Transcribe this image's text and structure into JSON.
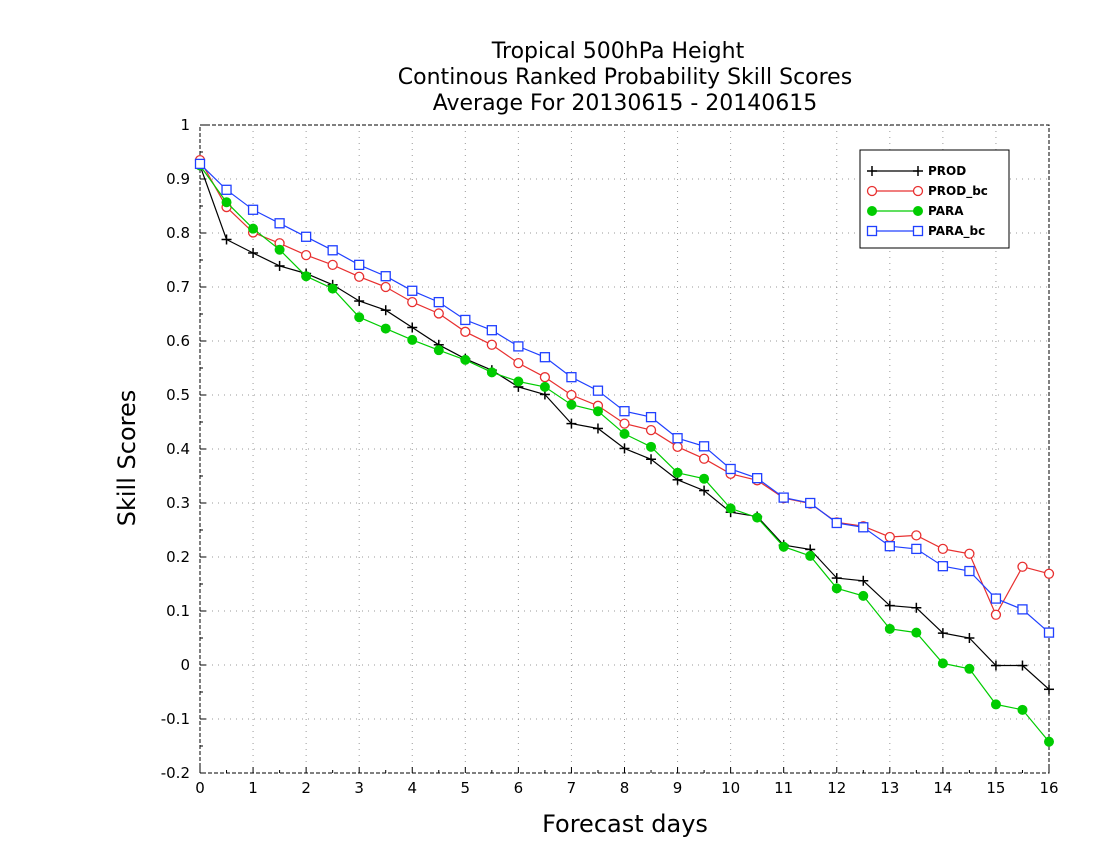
{
  "chart_data": {
    "type": "line",
    "title": [
      "Tropical 500hPa Height",
      "Continous Ranked Probability Skill Scores",
      "Average For 20130615 - 20140615"
    ],
    "xlabel": "Forecast days",
    "ylabel": "Skill Scores",
    "xlim": [
      0,
      16
    ],
    "ylim": [
      -0.2,
      1
    ],
    "x_ticks": [
      "0",
      "1",
      "2",
      "3",
      "4",
      "5",
      "6",
      "7",
      "8",
      "9",
      "10",
      "11",
      "12",
      "13",
      "14",
      "15",
      "16"
    ],
    "y_ticks": [
      "1",
      "0.9",
      "0.8",
      "0.7",
      "0.6",
      "0.5",
      "0.4",
      "0.3",
      "0.2",
      "0.1",
      "0",
      "-0.1",
      "-0.2"
    ],
    "grid": true,
    "legend_position": "top-right",
    "x": [
      0,
      0.5,
      1,
      1.5,
      2,
      2.5,
      3,
      3.5,
      4,
      4.5,
      5,
      5.5,
      6,
      6.5,
      7,
      7.5,
      8,
      8.5,
      9,
      9.5,
      10,
      10.5,
      11,
      11.5,
      12,
      12.5,
      13,
      13.5,
      14,
      14.5,
      15,
      15.5,
      16
    ],
    "series": [
      {
        "name": "PROD",
        "color": "#000000",
        "marker": "plus",
        "values": [
          0.925,
          0.788,
          0.763,
          0.739,
          0.725,
          0.704,
          0.674,
          0.657,
          0.625,
          0.593,
          0.567,
          0.546,
          0.515,
          0.501,
          0.447,
          0.438,
          0.401,
          0.381,
          0.343,
          0.323,
          0.283,
          0.275,
          0.222,
          0.214,
          0.161,
          0.156,
          0.11,
          0.106,
          0.059,
          0.05,
          -0.001,
          -0.001,
          -0.045
        ]
      },
      {
        "name": "PROD_bc",
        "color": "#e83030",
        "marker": "circle-open",
        "values": [
          0.935,
          0.848,
          0.801,
          0.781,
          0.759,
          0.741,
          0.719,
          0.7,
          0.672,
          0.651,
          0.617,
          0.593,
          0.559,
          0.533,
          0.5,
          0.48,
          0.447,
          0.435,
          0.404,
          0.382,
          0.354,
          0.342,
          0.309,
          0.299,
          0.264,
          0.257,
          0.237,
          0.24,
          0.215,
          0.206,
          0.093,
          0.182,
          0.169
        ]
      },
      {
        "name": "PARA",
        "color": "#00cc00",
        "marker": "circle-filled",
        "values": [
          0.925,
          0.857,
          0.808,
          0.769,
          0.72,
          0.697,
          0.644,
          0.623,
          0.602,
          0.583,
          0.565,
          0.542,
          0.525,
          0.515,
          0.482,
          0.47,
          0.428,
          0.404,
          0.356,
          0.345,
          0.29,
          0.273,
          0.219,
          0.202,
          0.142,
          0.128,
          0.067,
          0.06,
          0.003,
          -0.007,
          -0.073,
          -0.083,
          -0.142
        ]
      },
      {
        "name": "PARA_bc",
        "color": "#2040ff",
        "marker": "square-open",
        "values": [
          0.928,
          0.88,
          0.843,
          0.818,
          0.793,
          0.768,
          0.741,
          0.72,
          0.693,
          0.672,
          0.639,
          0.62,
          0.59,
          0.57,
          0.533,
          0.508,
          0.47,
          0.459,
          0.42,
          0.405,
          0.363,
          0.346,
          0.31,
          0.3,
          0.263,
          0.255,
          0.22,
          0.215,
          0.183,
          0.174,
          0.123,
          0.103,
          0.06
        ]
      }
    ]
  }
}
